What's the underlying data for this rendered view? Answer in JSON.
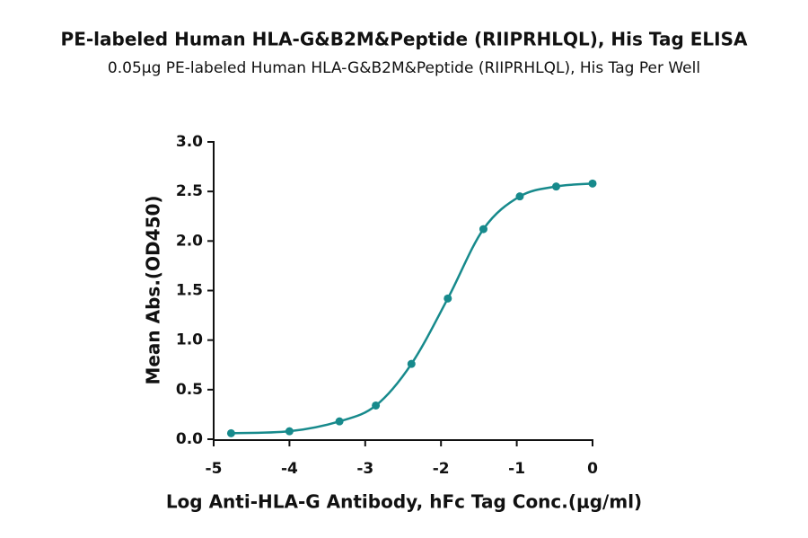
{
  "chart_data": {
    "type": "scatter",
    "title": "PE-labeled Human HLA-G&B2M&Peptide (RIIPRHLQL), His Tag ELISA",
    "subtitle": "0.05μg PE-labeled Human HLA-G&B2M&Peptide (RIIPRHLQL), His Tag Per Well",
    "x_label": "Log Anti-HLA-G Antibody, hFc Tag Conc.(μg/ml)",
    "y_label": "Mean Abs.(OD450)",
    "x": [
      -4.77,
      -4.0,
      -3.34,
      -2.86,
      -2.39,
      -1.91,
      -1.44,
      -0.96,
      -0.48,
      0.0
    ],
    "values": [
      0.06,
      0.08,
      0.18,
      0.34,
      0.76,
      1.42,
      2.12,
      2.45,
      2.55,
      2.58
    ],
    "color": "#178a8c",
    "xlim": [
      -5,
      0
    ],
    "xticks": [
      -5,
      -4,
      -3,
      -2,
      -1,
      0
    ],
    "ylim": [
      0,
      3
    ],
    "yticks": [
      {
        "value": 0,
        "label": "0.0"
      },
      0.5,
      {
        "value": 1,
        "label": "1.0"
      },
      1.5,
      {
        "value": 2,
        "label": "2.0"
      },
      2.5,
      {
        "value": 3,
        "label": "3.0"
      }
    ]
  }
}
